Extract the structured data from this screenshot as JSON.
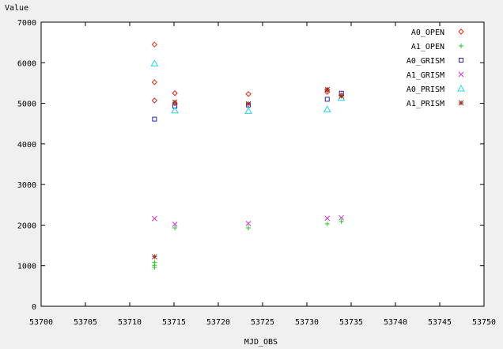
{
  "chart_data": {
    "type": "scatter",
    "xlabel": "MJD_OBS",
    "ylabel": "Value",
    "xlim": [
      53700,
      53750
    ],
    "ylim": [
      0,
      7000
    ],
    "xticks": [
      53700,
      53705,
      53710,
      53715,
      53720,
      53725,
      53730,
      53735,
      53740,
      53745,
      53750
    ],
    "yticks": [
      0,
      1000,
      2000,
      3000,
      4000,
      5000,
      6000,
      7000
    ],
    "grid": false,
    "legend_position": "top-right",
    "series": [
      {
        "name": "A0_OPEN",
        "color": "#dd2a1b",
        "marker": "diamond",
        "points": [
          [
            53712.8,
            6450
          ],
          [
            53712.8,
            5520
          ],
          [
            53712.8,
            5070
          ],
          [
            53715.1,
            5250
          ],
          [
            53715.1,
            5000
          ],
          [
            53723.4,
            5230
          ],
          [
            53732.3,
            5330
          ],
          [
            53732.3,
            5280
          ],
          [
            53733.9,
            5200
          ]
        ]
      },
      {
        "name": "A1_OPEN",
        "color": "#22cc22",
        "marker": "plus",
        "points": [
          [
            53712.8,
            1080
          ],
          [
            53712.8,
            1010
          ],
          [
            53712.8,
            960
          ],
          [
            53715.1,
            1930
          ],
          [
            53723.4,
            1930
          ],
          [
            53732.3,
            2030
          ],
          [
            53733.9,
            2090
          ]
        ]
      },
      {
        "name": "A0_GRISM",
        "color": "#2222bb",
        "marker": "square",
        "points": [
          [
            53712.8,
            4610
          ],
          [
            53715.1,
            4930
          ],
          [
            53723.4,
            4960
          ],
          [
            53732.3,
            5100
          ],
          [
            53733.9,
            5250
          ]
        ]
      },
      {
        "name": "A1_GRISM",
        "color": "#cc33cc",
        "marker": "x",
        "points": [
          [
            53712.8,
            2160
          ],
          [
            53715.1,
            2020
          ],
          [
            53723.4,
            2040
          ],
          [
            53732.3,
            2170
          ],
          [
            53733.9,
            2180
          ]
        ]
      },
      {
        "name": "A0_PRISM",
        "color": "#22d4dd",
        "marker": "triangle",
        "points": [
          [
            53712.8,
            5980
          ],
          [
            53715.1,
            4820
          ],
          [
            53723.4,
            4810
          ],
          [
            53732.3,
            4850
          ],
          [
            53733.9,
            5130
          ]
        ]
      },
      {
        "name": "A1_PRISM",
        "color": "#993322",
        "marker": "star",
        "points": [
          [
            53712.8,
            1220
          ],
          [
            53715.1,
            5030
          ],
          [
            53723.4,
            4990
          ],
          [
            53732.3,
            5340
          ],
          [
            53733.9,
            5180
          ]
        ]
      }
    ]
  }
}
